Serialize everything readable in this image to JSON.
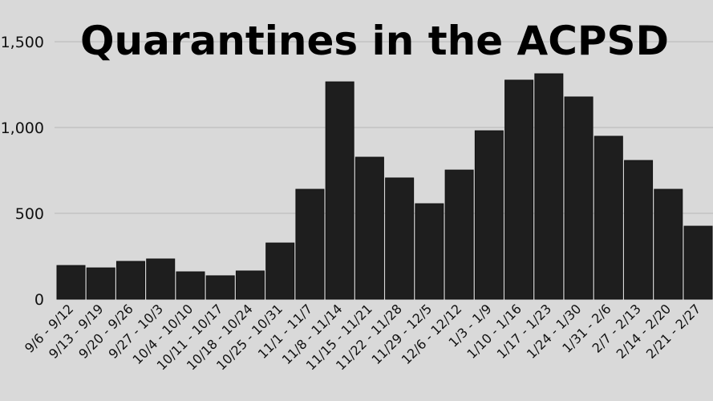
{
  "chart_data": {
    "type": "bar",
    "title": "Quarantines in the ACPSD",
    "xlabel": "",
    "ylabel": "",
    "ylim": [
      0,
      1500
    ],
    "yticks": [
      0,
      500,
      1000,
      1500
    ],
    "ytick_labels": [
      "0",
      "500",
      "1,000",
      "1,500"
    ],
    "grid": true,
    "bar_color": "#1e1e1e",
    "background": "#d9d9d9",
    "categories": [
      "9/6 - 9/12",
      "9/13 - 9/19",
      "9/20 - 9/26",
      "9/27 - 10/3",
      "10/4 - 10/10",
      "10/11 - 10/17",
      "10/18 - 10/24",
      "10/25 - 10/31",
      "11/1 - 11/7",
      "11/8 - 11/14",
      "11/15 - 11/21",
      "11/22 - 11/28",
      "11/29 - 12/5",
      "12/6 - 12/12",
      "1/3 - 1/9",
      "1/10 - 1/16",
      "1/17 - 1/23",
      "1/24 - 1/30",
      "1/31 - 2/6",
      "2/7 - 2/13",
      "2/14 - 2/20",
      "2/21 - 2/27"
    ],
    "values": [
      196,
      182,
      220,
      234,
      159,
      136,
      164,
      327,
      640,
      1266,
      827,
      706,
      556,
      752,
      981,
      1276,
      1313,
      1178,
      949,
      808,
      640,
      425
    ]
  }
}
